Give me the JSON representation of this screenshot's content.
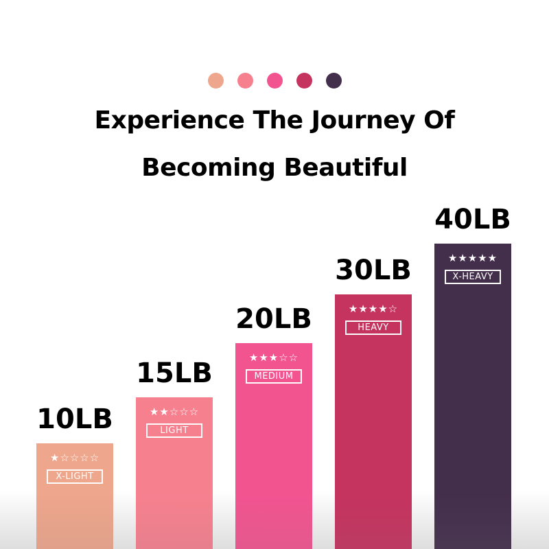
{
  "header": {
    "dot_colors": [
      "#eea68c",
      "#f7808f",
      "#f25490",
      "#c5335f",
      "#432e4c"
    ],
    "title_line1": "Experience The Journey Of",
    "title_line2": "Becoming Beautiful"
  },
  "chart_data": {
    "type": "bar",
    "categories": [
      "X-LIGHT",
      "LIGHT",
      "MEDIUM",
      "HEAVY",
      "X-HEAVY"
    ],
    "values": [
      10,
      15,
      20,
      30,
      40
    ],
    "value_labels": [
      "10LB",
      "15LB",
      "20LB",
      "30LB",
      "40LB"
    ],
    "stars": [
      1,
      2,
      3,
      4,
      5
    ],
    "star_max": 5,
    "colors": [
      "#eea68c",
      "#f7808f",
      "#f25490",
      "#c5335f",
      "#432e4c"
    ],
    "title": "",
    "xlabel": "",
    "ylabel": "",
    "grid": false
  }
}
